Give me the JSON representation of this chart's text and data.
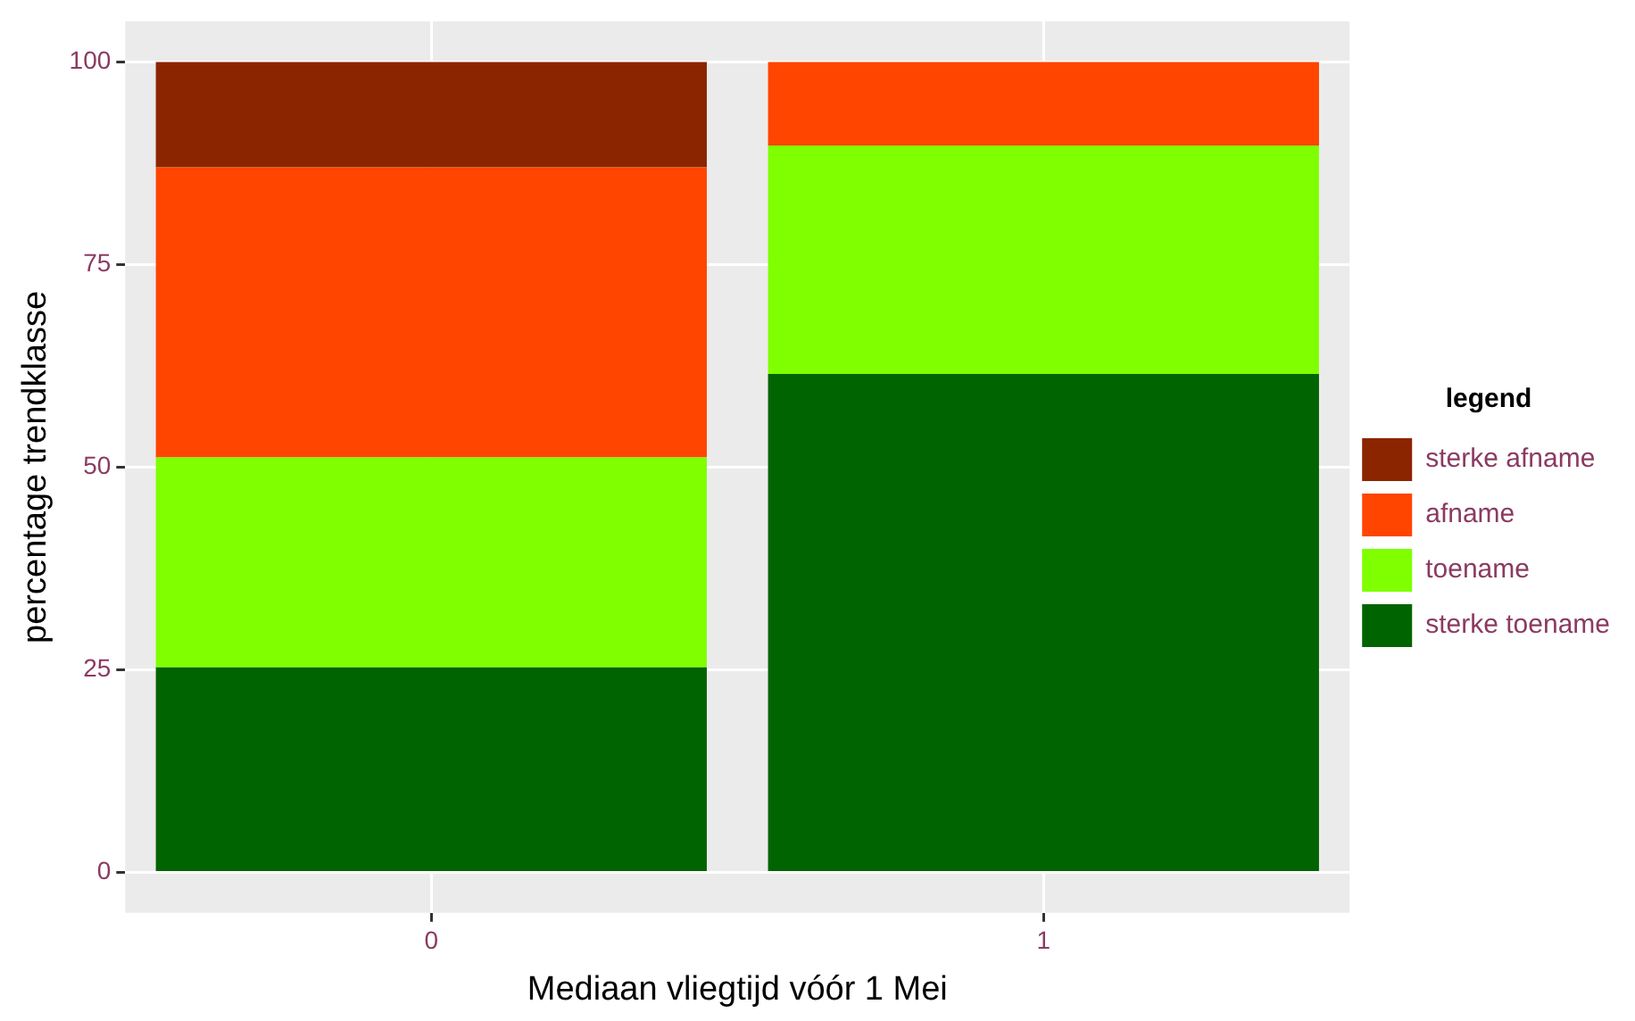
{
  "chart_data": {
    "type": "bar",
    "stacked": true,
    "xlabel": "Mediaan vliegtijd vóór 1 Mei",
    "ylabel": "percentage trendklasse",
    "legend_title": "legend",
    "legend": "right",
    "grid": true,
    "categories": [
      "0",
      "1"
    ],
    "series": [
      {
        "name": "sterke toename",
        "color": "#006400",
        "values": [
          25.3,
          61.5
        ]
      },
      {
        "name": "toename",
        "color": "#7fff00",
        "values": [
          25.9,
          28.2
        ]
      },
      {
        "name": "afname",
        "color": "#ff4500",
        "values": [
          35.8,
          10.3
        ]
      },
      {
        "name": "sterke afname",
        "color": "#8b2500",
        "values": [
          13.0,
          0
        ]
      }
    ],
    "ylim": [
      -5,
      105
    ],
    "yticks": [
      0,
      25,
      50,
      75,
      100
    ]
  }
}
